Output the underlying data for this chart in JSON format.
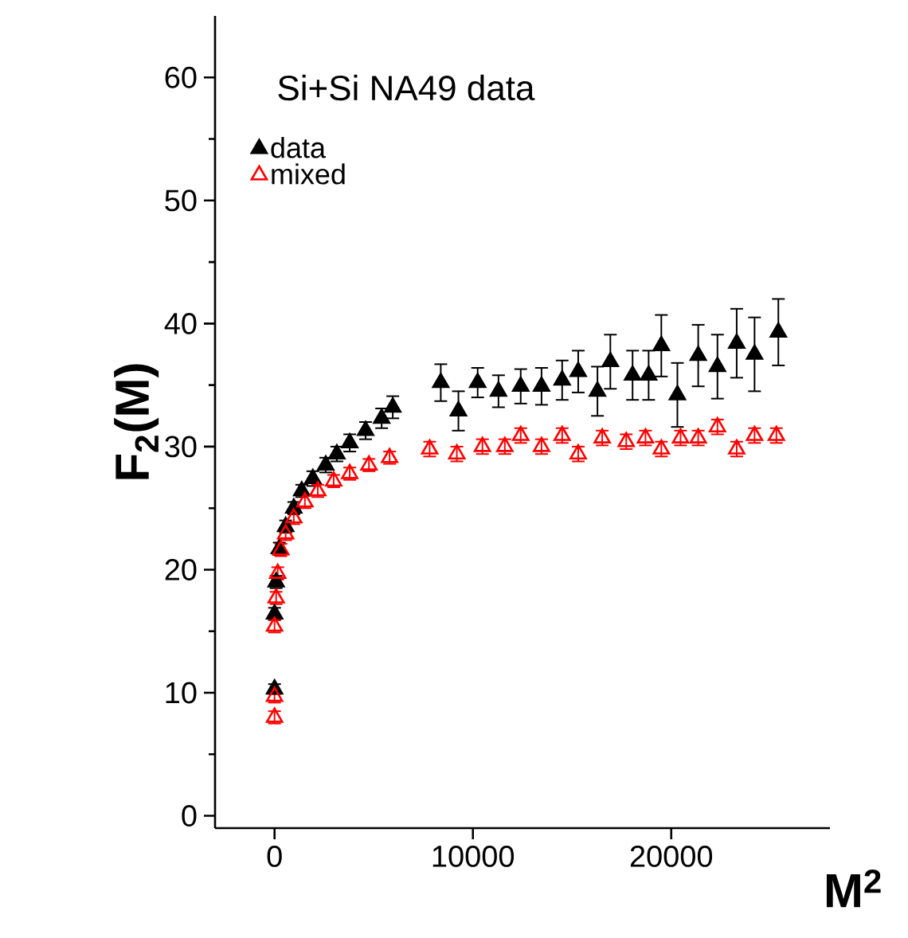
{
  "chart_data": {
    "type": "scatter",
    "title": "Si+Si  NA49  data",
    "xlabel": "M$^{2}$",
    "ylabel": "F$_{2}$(M)",
    "xlim": [
      -3000,
      28000
    ],
    "ylim": [
      -1,
      65
    ],
    "xticks": [
      0,
      10000,
      20000
    ],
    "yticks": [
      0,
      10,
      20,
      30,
      40,
      50,
      60
    ],
    "legend": "top left",
    "marker": "triangle",
    "grid": false,
    "series": [
      {
        "name": "data",
        "color": "#000000",
        "x": [
          0,
          0,
          80,
          240,
          560,
          970,
          1370,
          1930,
          2580,
          3140,
          3790,
          4590,
          5400,
          5960,
          8380,
          9270,
          10240,
          11290,
          12410,
          13460,
          14500,
          15310,
          16280,
          16930,
          18050,
          18860,
          19500,
          20310,
          21360,
          22330,
          23300,
          24200,
          25400
        ],
        "values": [
          10.3,
          16.4,
          19,
          21.7,
          23.5,
          25,
          26.4,
          27.4,
          28.5,
          29.4,
          30.3,
          31.3,
          32.3,
          33.2,
          35.2,
          32.9,
          35.2,
          34.5,
          34.9,
          34.9,
          35.4,
          36.1,
          34.5,
          36.9,
          35.8,
          35.8,
          38.2,
          34.2,
          37.4,
          36.5,
          38.4,
          37.5,
          39.3
        ],
        "errors": [
          0.4,
          0.5,
          0.5,
          0.5,
          0.5,
          0.5,
          0.5,
          0.6,
          0.6,
          0.6,
          0.7,
          0.7,
          0.8,
          0.9,
          1.5,
          1.6,
          1.2,
          1.3,
          1.4,
          1.5,
          1.6,
          1.7,
          2.0,
          2.2,
          2.0,
          2.0,
          2.5,
          2.6,
          2.5,
          2.6,
          2.8,
          3.0,
          2.7
        ]
      },
      {
        "name": "mixed",
        "color": "#ff0000",
        "x": [
          0,
          0,
          0,
          80,
          160,
          320,
          560,
          970,
          1530,
          2180,
          2980,
          3790,
          4760,
          5800,
          7820,
          9190,
          10480,
          11610,
          12410,
          13460,
          14500,
          15310,
          16520,
          17730,
          18700,
          19500,
          20470,
          21360,
          22330,
          23300,
          24200,
          25300
        ],
        "values": [
          8.0,
          9.7,
          15.4,
          17.7,
          19.7,
          21.6,
          22.9,
          24.2,
          25.5,
          26.4,
          27.2,
          27.8,
          28.5,
          29.1,
          29.8,
          29.4,
          30.0,
          30.0,
          30.9,
          30.0,
          30.9,
          29.4,
          30.7,
          30.4,
          30.7,
          29.8,
          30.7,
          30.7,
          31.6,
          29.8,
          30.9,
          30.9
        ],
        "errors": [
          0.5,
          0.5,
          0.5,
          0.5,
          0.5,
          0.5,
          0.5,
          0.5,
          0.5,
          0.5,
          0.5,
          0.5,
          0.5,
          0.5,
          0.6,
          0.6,
          0.6,
          0.6,
          0.6,
          0.6,
          0.6,
          0.6,
          0.6,
          0.6,
          0.6,
          0.6,
          0.6,
          0.6,
          0.6,
          0.6,
          0.6,
          0.6
        ]
      }
    ]
  }
}
